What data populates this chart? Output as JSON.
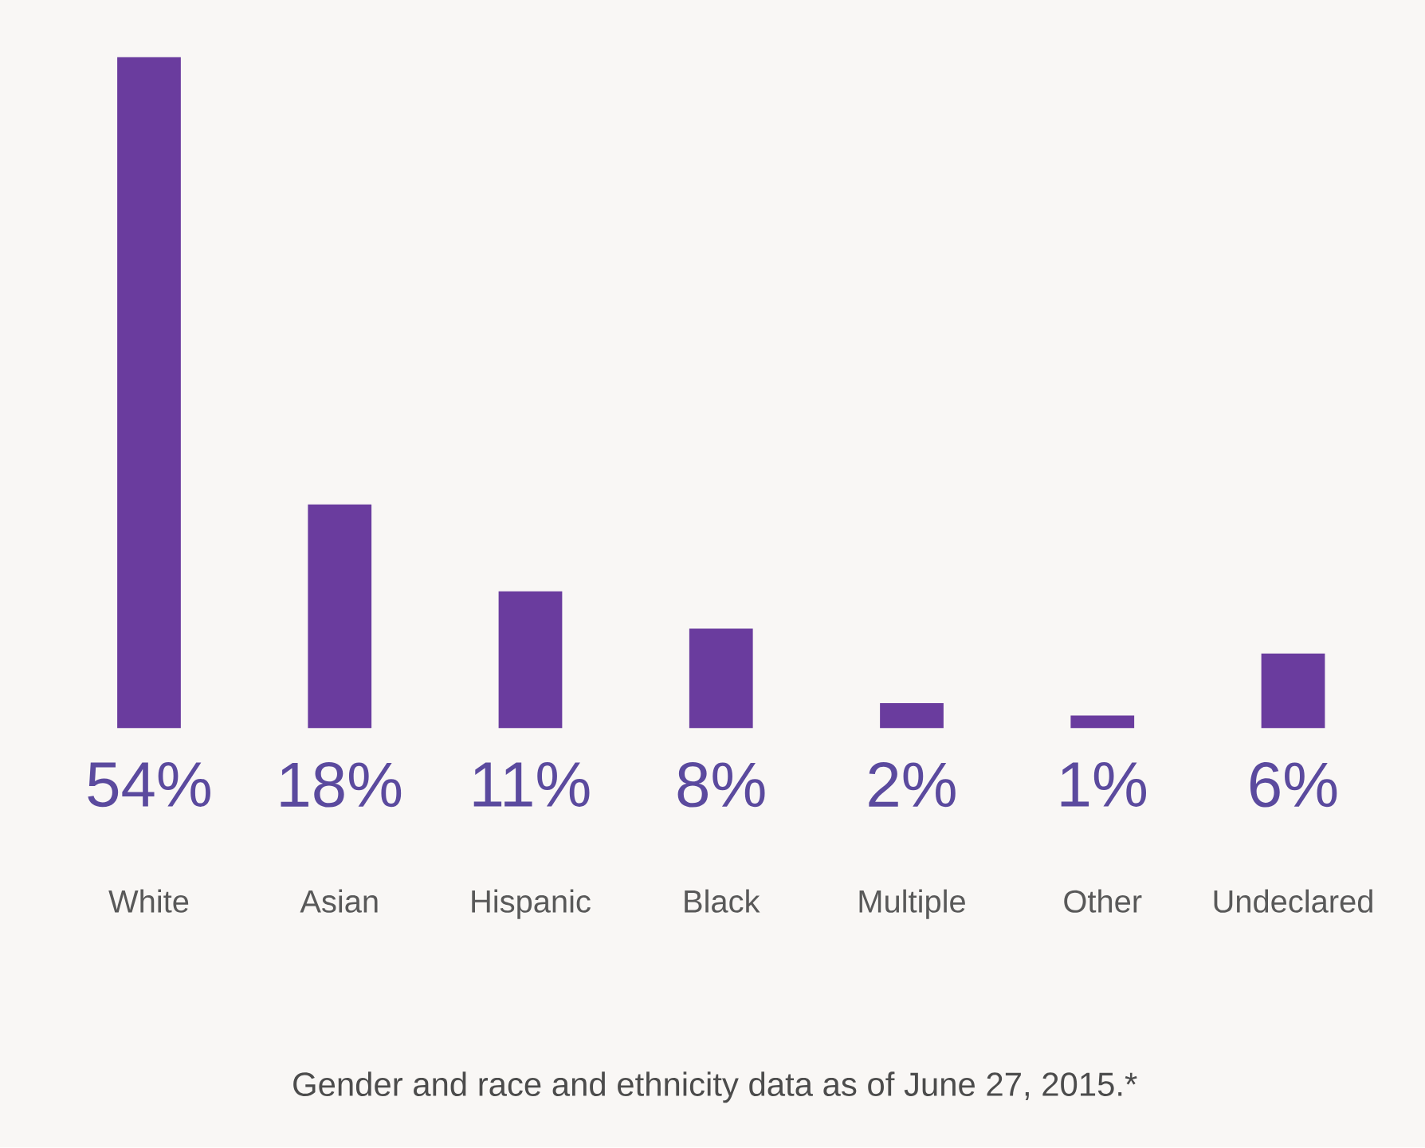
{
  "chart_data": {
    "type": "bar",
    "categories": [
      "White",
      "Asian",
      "Hispanic",
      "Black",
      "Multiple",
      "Other",
      "Undeclared"
    ],
    "values": [
      54,
      18,
      11,
      8,
      2,
      1,
      6
    ],
    "value_labels": [
      "54%",
      "18%",
      "11%",
      "8%",
      "2%",
      "1%",
      "6%"
    ],
    "color": "#6a3c9e",
    "annotations": [
      "Gender and race and ethnicity data as of June 27, 2015.*"
    ]
  }
}
